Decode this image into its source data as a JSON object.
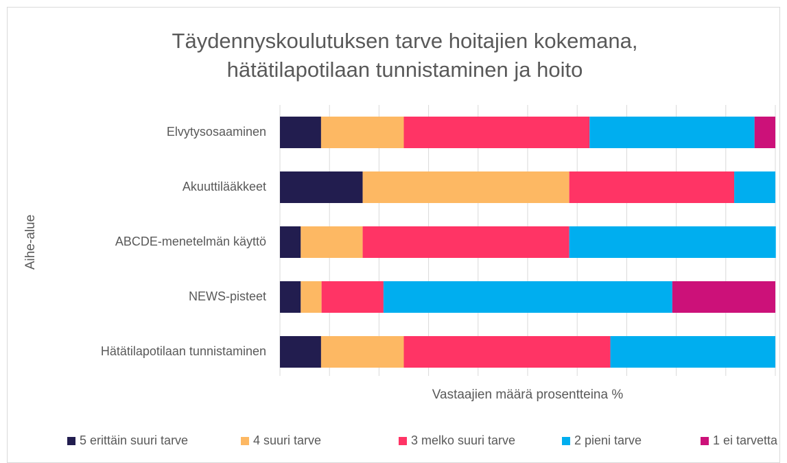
{
  "chart_data": {
    "type": "stacked_barh",
    "title": [
      "Täydennyskoulutuksen tarve hoitajien kokemana,",
      "hätätilapotilaan tunnistaminen ja hoito"
    ],
    "ylabel": "Aihe-alue",
    "xlabel": "Vastaajien määrä prosentteina %",
    "categories": [
      "Elvytysosaaminen",
      "Akuuttilääkkeet",
      "ABCDE-menetelmän käyttö",
      "NEWS-pisteet",
      "Hätätilapotilaan tunnistaminen"
    ],
    "series": [
      {
        "name": "5 erittäin suuri tarve",
        "color": "#221d4f",
        "values": [
          8.3,
          16.7,
          4.2,
          4.2,
          8.3
        ]
      },
      {
        "name": "4 suuri tarve",
        "color": "#fdb863",
        "values": [
          16.7,
          41.7,
          12.5,
          4.2,
          16.7
        ]
      },
      {
        "name": "3 melko suuri tarve",
        "color": "#ff3465",
        "values": [
          37.5,
          33.3,
          41.7,
          12.5,
          41.7
        ]
      },
      {
        "name": "2 pieni tarve",
        "color": "#00aeef",
        "values": [
          33.3,
          8.3,
          41.7,
          58.3,
          33.3
        ]
      },
      {
        "name": "1 ei tarvetta",
        "color": "#cc1179",
        "values": [
          4.2,
          0,
          0,
          20.8,
          0
        ]
      }
    ],
    "xlim": [
      0,
      100
    ],
    "xticks": [
      0,
      10,
      20,
      30,
      40,
      50,
      60,
      70,
      80,
      90,
      100
    ],
    "grid": true,
    "legend": "bottom"
  }
}
